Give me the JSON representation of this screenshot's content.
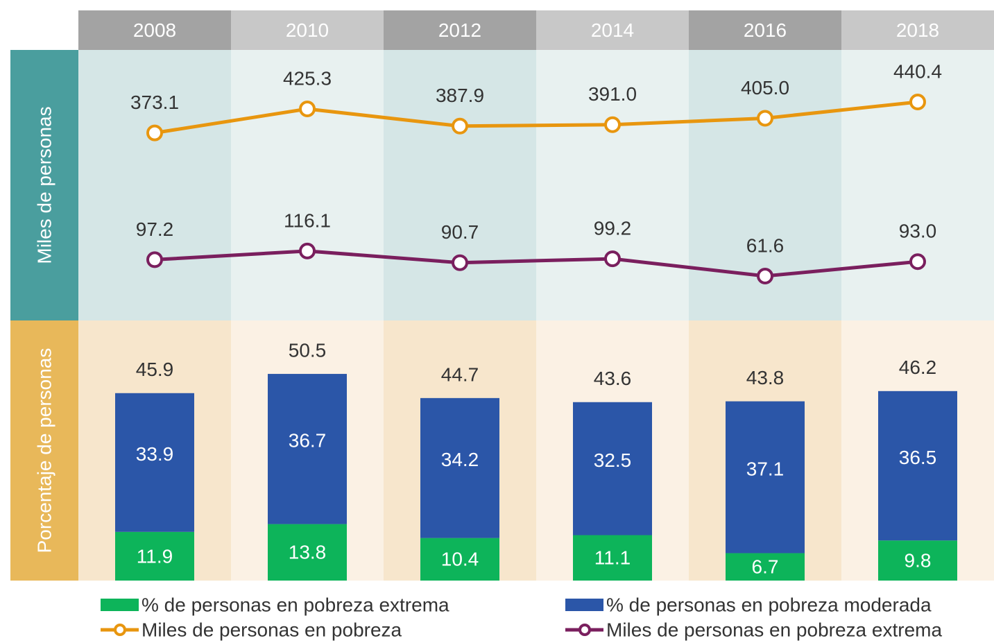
{
  "chart_data": [
    {
      "type": "line",
      "y_label": "Miles de personas",
      "categories": [
        "2008",
        "2010",
        "2012",
        "2014",
        "2016",
        "2018"
      ],
      "series": [
        {
          "name": "Miles de personas en pobreza",
          "color": "#e8960f",
          "values": [
            373.1,
            425.3,
            387.9,
            391.0,
            405.0,
            440.4
          ],
          "value_labels": [
            "373.1",
            "425.3",
            "387.9",
            "391.0",
            "405.0",
            "440.4"
          ]
        },
        {
          "name": "Miles de personas en pobreza extrema",
          "color": "#7a1f5e",
          "values": [
            97.2,
            116.1,
            90.7,
            99.2,
            61.6,
            93.0
          ],
          "value_labels": [
            "97.2",
            "116.1",
            "90.7",
            "99.2",
            "61.6",
            "93.0"
          ]
        }
      ]
    },
    {
      "type": "stacked_bar",
      "y_label": "Porcentaje de personas",
      "series": [
        {
          "name": "% de personas en pobreza extrema",
          "color": "#0db45a",
          "values": [
            11.9,
            13.8,
            10.4,
            11.1,
            6.7,
            9.8
          ]
        },
        {
          "name": "% de personas en pobreza moderada",
          "color": "#2b56a8",
          "values": [
            33.9,
            36.7,
            34.2,
            32.5,
            37.1,
            36.5
          ]
        }
      ],
      "totals": [
        45.9,
        50.5,
        44.7,
        43.6,
        43.8,
        46.2
      ]
    }
  ]
}
